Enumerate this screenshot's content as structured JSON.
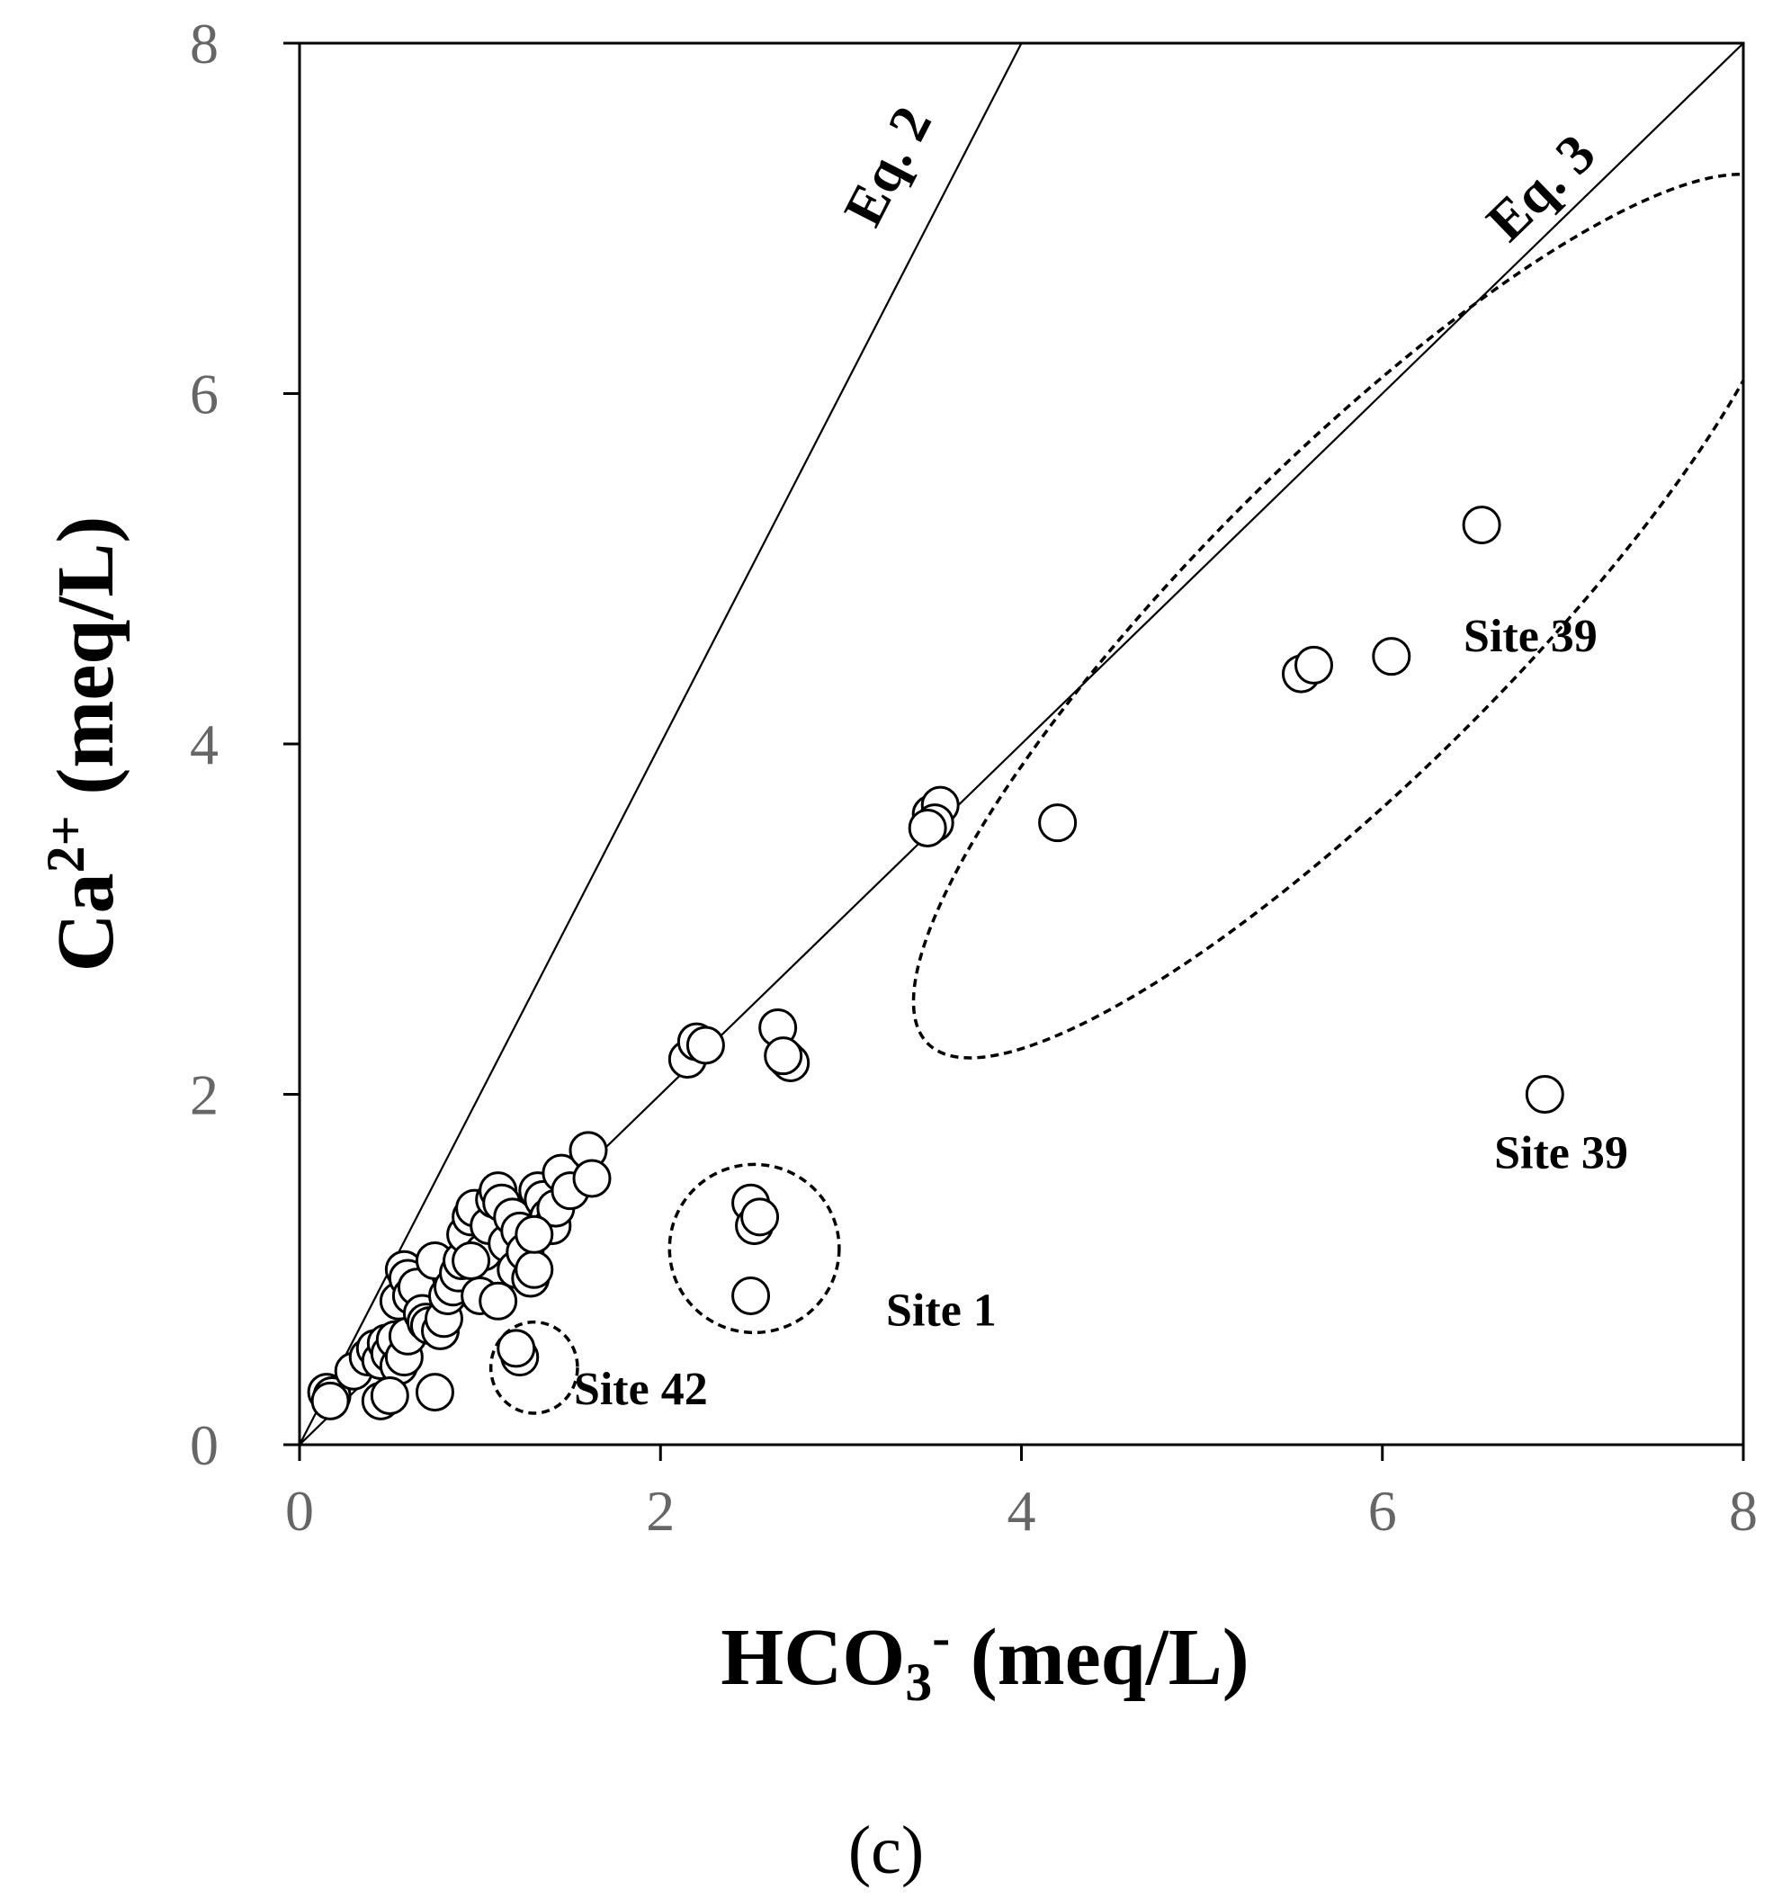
{
  "chart_data": {
    "type": "scatter",
    "panel_label": "(c)",
    "xlabel": {
      "main": "HCO",
      "sub": "3",
      "sup": "-",
      "unit": " (meq/L)"
    },
    "ylabel": {
      "main": "Ca",
      "sup": "2+",
      "unit": " (meq/L)"
    },
    "xlim": [
      0,
      8
    ],
    "ylim": [
      0,
      8
    ],
    "xticks": [
      0,
      2,
      4,
      6,
      8
    ],
    "yticks": [
      0,
      2,
      4,
      6,
      8
    ],
    "x_tick_labels": [
      "0",
      "2",
      "4",
      "6",
      "8"
    ],
    "y_tick_labels": [
      "0",
      "2",
      "4",
      "6",
      "8"
    ],
    "grid": false,
    "lines": [
      {
        "name": "Eq. 2",
        "label": "Eq. 2",
        "slope": 2,
        "x": [
          0,
          4
        ]
      },
      {
        "name": "Eq. 3",
        "label": "Eq. 3",
        "slope": 1,
        "x": [
          0,
          8
        ]
      }
    ],
    "points": [
      [
        0.15,
        0.3
      ],
      [
        0.18,
        0.28
      ],
      [
        0.17,
        0.25
      ],
      [
        0.3,
        0.42
      ],
      [
        0.38,
        0.5
      ],
      [
        0.42,
        0.55
      ],
      [
        0.45,
        0.48
      ],
      [
        0.48,
        0.58
      ],
      [
        0.5,
        0.52
      ],
      [
        0.53,
        0.6
      ],
      [
        0.55,
        0.45
      ],
      [
        0.58,
        0.5
      ],
      [
        0.6,
        0.62
      ],
      [
        0.45,
        0.25
      ],
      [
        0.5,
        0.28
      ],
      [
        0.75,
        0.3
      ],
      [
        0.55,
        0.82
      ],
      [
        0.58,
        1.0
      ],
      [
        0.6,
        0.95
      ],
      [
        0.62,
        0.85
      ],
      [
        0.65,
        0.9
      ],
      [
        0.68,
        0.75
      ],
      [
        0.7,
        0.7
      ],
      [
        0.72,
        0.68
      ],
      [
        0.75,
        1.05
      ],
      [
        0.78,
        0.65
      ],
      [
        0.8,
        0.72
      ],
      [
        0.82,
        0.85
      ],
      [
        0.85,
        0.9
      ],
      [
        0.88,
        0.98
      ],
      [
        0.9,
        1.05
      ],
      [
        0.92,
        1.2
      ],
      [
        0.95,
        1.3
      ],
      [
        0.97,
        1.35
      ],
      [
        1.0,
        0.85
      ],
      [
        1.02,
        1.1
      ],
      [
        1.05,
        1.25
      ],
      [
        1.08,
        1.4
      ],
      [
        1.1,
        1.45
      ],
      [
        1.12,
        1.38
      ],
      [
        1.15,
        1.15
      ],
      [
        1.18,
        1.3
      ],
      [
        1.2,
        1.0
      ],
      [
        1.22,
        1.22
      ],
      [
        1.25,
        1.1
      ],
      [
        1.28,
        0.95
      ],
      [
        1.3,
        1.0
      ],
      [
        1.32,
        1.45
      ],
      [
        1.35,
        1.4
      ],
      [
        1.38,
        1.3
      ],
      [
        1.4,
        1.25
      ],
      [
        1.42,
        1.35
      ],
      [
        1.45,
        1.55
      ],
      [
        1.5,
        1.45
      ],
      [
        1.6,
        1.68
      ],
      [
        1.62,
        1.52
      ],
      [
        0.95,
        1.05
      ],
      [
        1.1,
        0.82
      ],
      [
        1.3,
        1.2
      ],
      [
        2.15,
        2.2
      ],
      [
        2.2,
        2.3
      ],
      [
        2.25,
        2.28
      ],
      [
        2.65,
        2.38
      ],
      [
        2.7,
        2.2
      ],
      [
        2.72,
        2.18
      ],
      [
        2.68,
        2.22
      ],
      [
        3.5,
        3.6
      ],
      [
        3.55,
        3.65
      ],
      [
        3.52,
        3.55
      ],
      [
        3.48,
        3.52
      ],
      [
        2.5,
        1.38
      ],
      [
        2.52,
        1.25
      ],
      [
        2.55,
        1.3
      ],
      [
        2.5,
        0.85
      ],
      [
        1.22,
        0.5
      ],
      [
        1.2,
        0.55
      ],
      [
        4.2,
        3.55
      ],
      [
        5.55,
        4.4
      ],
      [
        5.62,
        4.45
      ],
      [
        6.05,
        4.5
      ],
      [
        6.55,
        5.25
      ],
      [
        6.9,
        2.0
      ]
    ],
    "annotations": [
      {
        "text": "Site 39",
        "x": 6.45,
        "y": 4.53
      },
      {
        "text": "Site 39",
        "x": 6.62,
        "y": 1.58
      },
      {
        "text": "Site 1",
        "x": 3.25,
        "y": 0.68
      },
      {
        "text": "Site 42",
        "x": 1.52,
        "y": 0.23
      }
    ],
    "ellipses": [
      {
        "name": "site-39-ellipse",
        "cx": 5.85,
        "cy": 4.73,
        "rx": 3.35,
        "ry": 0.9,
        "angle_deg": 45
      },
      {
        "name": "site-1-ellipse",
        "cx": 2.52,
        "cy": 1.12,
        "rx": 0.47,
        "ry": 0.48,
        "angle_deg": 0
      },
      {
        "name": "site-42-ellipse",
        "cx": 1.3,
        "cy": 0.44,
        "rx": 0.24,
        "ry": 0.26,
        "angle_deg": 0
      }
    ]
  }
}
